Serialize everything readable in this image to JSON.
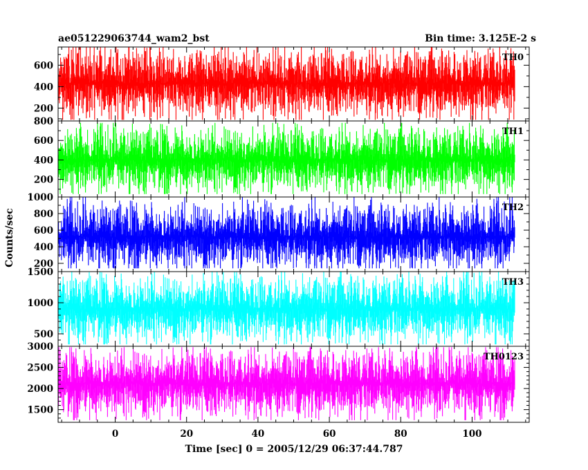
{
  "chart_data": {
    "type": "line",
    "title": "ae051229063744_wam2_bst",
    "subtitle": "Bin time: 3.125E-2 s",
    "xlabel": "Time [sec] 0 = 2005/12/29 06:37:44.787",
    "ylabel": "Counts/sec",
    "xlim": [
      -16,
      116
    ],
    "x_data_range": [
      -16,
      112
    ],
    "xticks": [
      "0",
      "20",
      "40",
      "60",
      "80",
      "100"
    ],
    "xtick_values": [
      0,
      20,
      40,
      60,
      80,
      100
    ],
    "grid": false,
    "series": [
      {
        "name": "TH0",
        "color": "#ff0000",
        "ylim": [
          80,
          770
        ],
        "yticks": [
          "200",
          "400",
          "600"
        ],
        "ytick_values": [
          200,
          400,
          600
        ],
        "mean": 430,
        "min": 90,
        "max": 770
      },
      {
        "name": "TH1",
        "color": "#00ff00",
        "ylim": [
          20,
          800
        ],
        "yticks": [
          "200",
          "400",
          "600",
          "800"
        ],
        "ytick_values": [
          200,
          400,
          600,
          800
        ],
        "mean": 400,
        "min": 50,
        "max": 780
      },
      {
        "name": "TH2",
        "color": "#0000ff",
        "ylim": [
          100,
          1000
        ],
        "yticks": [
          "200",
          "400",
          "600",
          "800",
          "1000"
        ],
        "ytick_values": [
          200,
          400,
          600,
          800,
          1000
        ],
        "mean": 520,
        "min": 140,
        "max": 1000
      },
      {
        "name": "TH3",
        "color": "#00ffff",
        "ylim": [
          300,
          1500
        ],
        "yticks": [
          "500",
          "1000",
          "1500"
        ],
        "ytick_values": [
          500,
          1000,
          1500
        ],
        "mean": 900,
        "min": 330,
        "max": 1500
      },
      {
        "name": "TH0123",
        "color": "#ff00ff",
        "ylim": [
          1200,
          3000
        ],
        "yticks": [
          "1500",
          "2000",
          "2500",
          "3000"
        ],
        "ytick_values": [
          1500,
          2000,
          2500,
          3000
        ],
        "mean": 2120,
        "min": 1250,
        "max": 2980
      }
    ]
  }
}
